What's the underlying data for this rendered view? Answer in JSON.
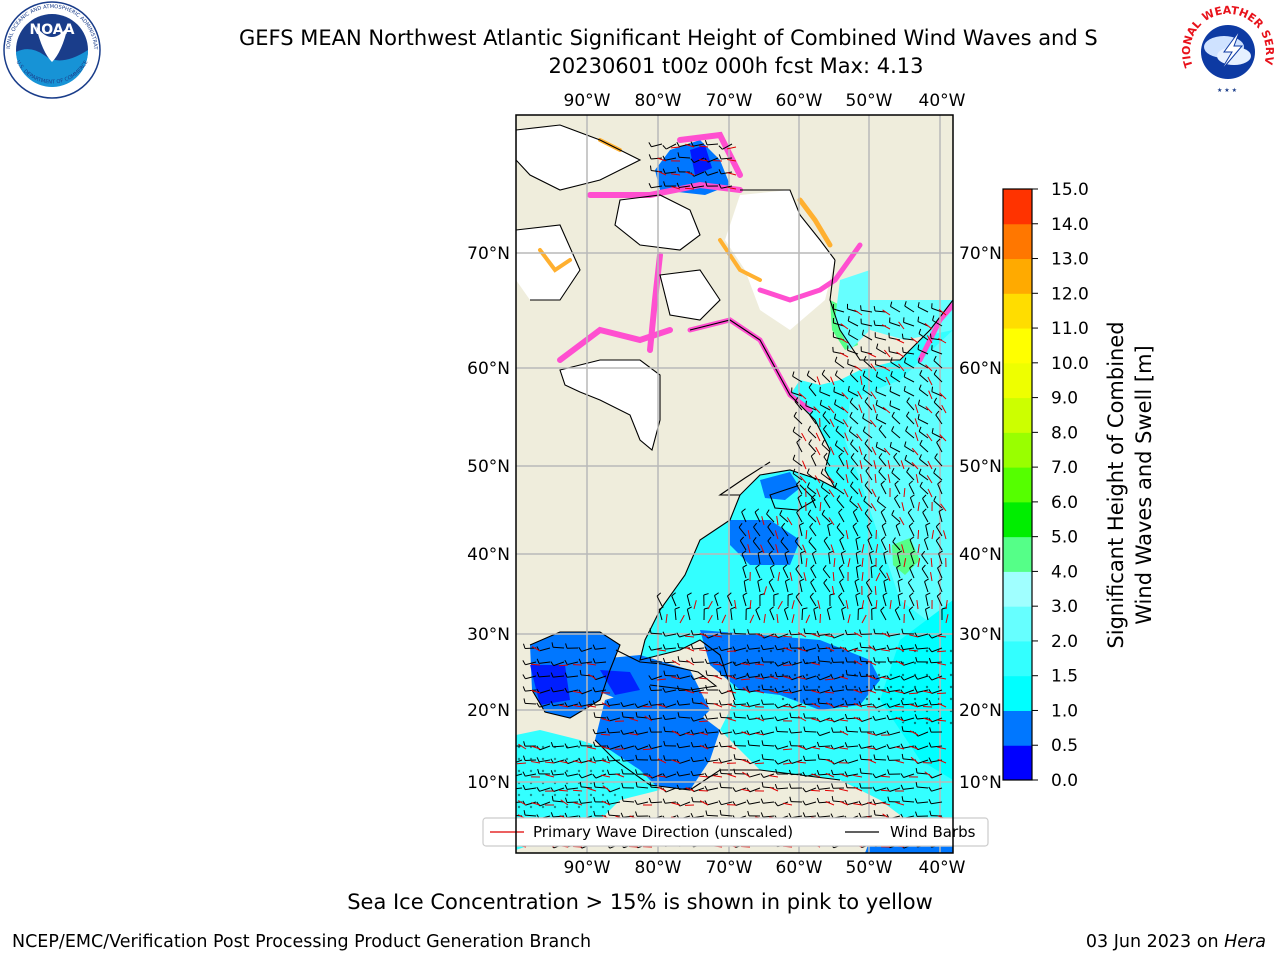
{
  "header": {
    "title": "GEFS MEAN Northwest Atlantic Significant Height of Combined Wind Waves and S",
    "subtitle": "20230601 t00z 000h fcst   Max: 4.13"
  },
  "logos": {
    "left": {
      "name": "noaa-logo",
      "ring_text_top": "NATIONAL OCEANIC AND ATMOSPHERIC ADMINISTRATION",
      "ring_text_bottom": "U.S. DEPARTMENT OF COMMERCE",
      "center_text": "NOAA"
    },
    "right": {
      "name": "nws-logo",
      "ring_text_top": "NATIONAL WEATHER SERVICE"
    }
  },
  "map": {
    "lon_ticks": [
      "90°W",
      "80°W",
      "70°W",
      "60°W",
      "50°W",
      "40°W"
    ],
    "lat_ticks_left": [
      "70°N",
      "60°N",
      "50°N",
      "40°N",
      "30°N",
      "20°N",
      "10°N"
    ],
    "lat_ticks_right": [
      "70°N",
      "60°N",
      "50°N",
      "40°N",
      "30°N",
      "20°N",
      "10°N"
    ],
    "colors": {
      "land": "#efeddc",
      "ice_pink": "#ff4fd0",
      "ice_orange": "#ffb030",
      "grid": "#b9b9b9",
      "arrow": "#e00000",
      "barb": "#000000"
    },
    "legend": {
      "wave_dir": "Primary Wave Direction (unscaled)",
      "wind_barbs": "Wind Barbs"
    }
  },
  "colorbar": {
    "label_line1": "Significant Height of Combined",
    "label_line2": "Wind Waves and Swell [m]",
    "ticks": [
      "0.0",
      "0.5",
      "1.0",
      "1.5",
      "2.0",
      "3.0",
      "4.0",
      "5.0",
      "6.0",
      "7.0",
      "8.0",
      "9.0",
      "10.0",
      "11.0",
      "12.0",
      "13.0",
      "14.0",
      "15.0"
    ],
    "colors": [
      "#0000ff",
      "#0077ff",
      "#00ffff",
      "#33ffff",
      "#66ffff",
      "#a0ffff",
      "#55ff88",
      "#00ee00",
      "#55ff00",
      "#99ff00",
      "#ccff00",
      "#eeff00",
      "#ffff00",
      "#ffdd00",
      "#ffaa00",
      "#ff7700",
      "#ff3300",
      "#ff0000"
    ]
  },
  "caption": "Sea Ice Concentration > 15% is shown in pink to yellow",
  "footer": {
    "left": "NCEP/EMC/Verification Post Processing Product Generation Branch",
    "date": "03 Jun 2023 on",
    "machine": "Hera"
  }
}
